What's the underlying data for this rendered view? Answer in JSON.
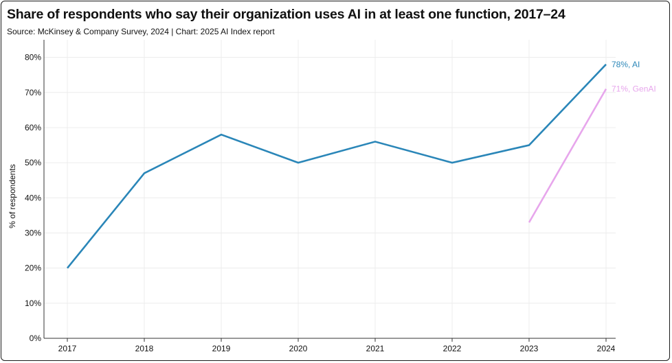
{
  "chart_data": {
    "type": "line",
    "title": "Share of respondents who say their organization uses AI in at least one function, 2017–24",
    "subtitle": "Source: McKinsey & Company Survey, 2024 | Chart: 2025 AI Index report",
    "xlabel": "",
    "ylabel": "% of respondents",
    "x": [
      "2017",
      "2018",
      "2019",
      "2020",
      "2021",
      "2022",
      "2023",
      "2024"
    ],
    "ylim": [
      0,
      85
    ],
    "yticks": [
      0,
      10,
      20,
      30,
      40,
      50,
      60,
      70,
      80
    ],
    "ytick_labels": [
      "0%",
      "10%",
      "20%",
      "30%",
      "40%",
      "50%",
      "60%",
      "70%",
      "80%"
    ],
    "grid": true,
    "series": [
      {
        "name": "AI",
        "color": "#2a86b8",
        "values": [
          20,
          47,
          58,
          50,
          56,
          50,
          55,
          78
        ],
        "end_label": "78%, AI"
      },
      {
        "name": "GenAI",
        "color": "#e7a6ec",
        "values": [
          null,
          null,
          null,
          null,
          null,
          null,
          33,
          71
        ],
        "end_label": "71%, GenAI"
      }
    ]
  }
}
